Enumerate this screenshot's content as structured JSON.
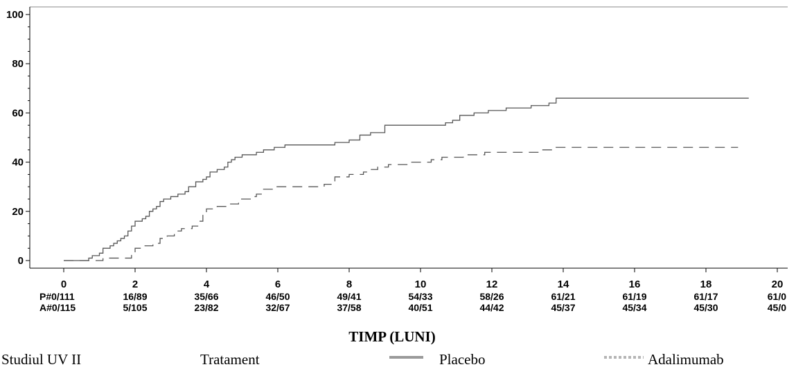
{
  "chart_data": {
    "type": "line",
    "xlabel": "TIMP (LUNI)",
    "ylabel": "",
    "xlim": [
      0,
      20
    ],
    "ylim": [
      0,
      100
    ],
    "x_ticks": [
      0,
      2,
      4,
      6,
      8,
      10,
      12,
      14,
      16,
      18,
      20
    ],
    "y_ticks": [
      0,
      20,
      40,
      60,
      80,
      100
    ],
    "grid": false,
    "legend_position": "bottom",
    "series": [
      {
        "name": "Placebo",
        "style": "solid",
        "color": "#555555",
        "points": [
          [
            0,
            0
          ],
          [
            0.6,
            0
          ],
          [
            0.7,
            1
          ],
          [
            0.8,
            2
          ],
          [
            1.0,
            3
          ],
          [
            1.1,
            5
          ],
          [
            1.3,
            6
          ],
          [
            1.4,
            7
          ],
          [
            1.5,
            8
          ],
          [
            1.6,
            9
          ],
          [
            1.7,
            10
          ],
          [
            1.8,
            12
          ],
          [
            1.9,
            14
          ],
          [
            2.0,
            16
          ],
          [
            2.2,
            17
          ],
          [
            2.3,
            18
          ],
          [
            2.4,
            20
          ],
          [
            2.5,
            21
          ],
          [
            2.6,
            22
          ],
          [
            2.7,
            24
          ],
          [
            2.8,
            25
          ],
          [
            3.0,
            26
          ],
          [
            3.2,
            27
          ],
          [
            3.4,
            28
          ],
          [
            3.5,
            30
          ],
          [
            3.7,
            32
          ],
          [
            3.9,
            33
          ],
          [
            4.0,
            34
          ],
          [
            4.1,
            36
          ],
          [
            4.3,
            37
          ],
          [
            4.5,
            38
          ],
          [
            4.6,
            40
          ],
          [
            4.7,
            41
          ],
          [
            4.8,
            42
          ],
          [
            5.0,
            43
          ],
          [
            5.4,
            44
          ],
          [
            5.6,
            45
          ],
          [
            5.9,
            46
          ],
          [
            6.2,
            47
          ],
          [
            7.6,
            48
          ],
          [
            8.0,
            49
          ],
          [
            8.3,
            51
          ],
          [
            8.6,
            52
          ],
          [
            9.0,
            55
          ],
          [
            10.7,
            56
          ],
          [
            10.9,
            57
          ],
          [
            11.1,
            59
          ],
          [
            11.5,
            60
          ],
          [
            11.9,
            61
          ],
          [
            12.4,
            62
          ],
          [
            13.1,
            63
          ],
          [
            13.6,
            64
          ],
          [
            13.8,
            66
          ],
          [
            19.2,
            66
          ]
        ]
      },
      {
        "name": "Adalimumab",
        "style": "dashed",
        "color": "#555555",
        "points": [
          [
            0,
            0
          ],
          [
            1.0,
            0
          ],
          [
            1.1,
            1
          ],
          [
            1.8,
            1
          ],
          [
            1.9,
            3
          ],
          [
            2.0,
            5
          ],
          [
            2.2,
            6
          ],
          [
            2.5,
            7
          ],
          [
            2.7,
            9
          ],
          [
            2.9,
            10
          ],
          [
            3.1,
            12
          ],
          [
            3.3,
            13
          ],
          [
            3.6,
            14
          ],
          [
            3.8,
            16
          ],
          [
            3.9,
            19
          ],
          [
            4.0,
            21
          ],
          [
            4.3,
            22
          ],
          [
            4.6,
            23
          ],
          [
            4.9,
            25
          ],
          [
            5.3,
            26
          ],
          [
            5.4,
            27
          ],
          [
            5.6,
            29
          ],
          [
            5.9,
            30
          ],
          [
            7.3,
            31
          ],
          [
            7.6,
            34
          ],
          [
            8.0,
            35
          ],
          [
            8.4,
            36
          ],
          [
            8.6,
            37
          ],
          [
            8.8,
            38
          ],
          [
            9.1,
            39
          ],
          [
            9.7,
            40
          ],
          [
            10.3,
            41
          ],
          [
            10.6,
            42
          ],
          [
            11.2,
            43
          ],
          [
            11.8,
            44
          ],
          [
            13.4,
            45
          ],
          [
            13.8,
            46
          ],
          [
            18.9,
            46
          ]
        ]
      }
    ],
    "risk_table": {
      "rows": [
        {
          "label": "P#",
          "values": [
            "0/111",
            "16/89",
            "35/66",
            "46/50",
            "49/41",
            "54/33",
            "58/26",
            "61/21",
            "61/19",
            "61/17",
            "61/0"
          ]
        },
        {
          "label": "A#",
          "values": [
            "0/115",
            "5/105",
            "23/82",
            "32/67",
            "37/58",
            "40/51",
            "44/42",
            "45/37",
            "45/34",
            "45/30",
            "45/0"
          ]
        }
      ]
    }
  },
  "legend": {
    "study": "Studiul UV II",
    "treatment_label": "Tratament",
    "placebo_label": "Placebo",
    "adalimumab_label": "Adalimumab"
  }
}
